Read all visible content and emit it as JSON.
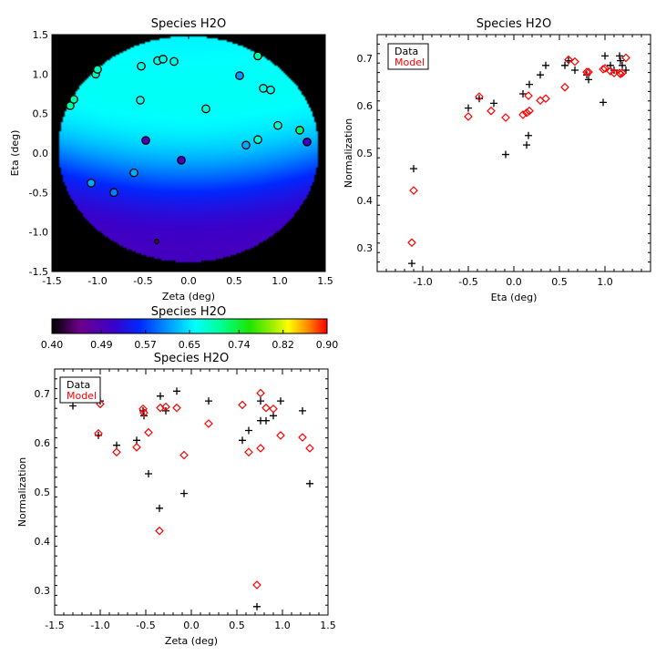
{
  "chart_data": [
    {
      "id": "map",
      "type": "scatter",
      "title": "Species H2O",
      "xlabel": "Zeta (deg)",
      "ylabel": "Eta (deg)",
      "xlim": [
        -1.5,
        1.5
      ],
      "ylim": [
        -1.5,
        1.5
      ],
      "xticks": [
        "-1.5",
        "-1.0",
        "-0.5",
        "0.0",
        "0.5",
        "1.0",
        "1.5"
      ],
      "yticks": [
        "-1.5",
        "-1.0",
        "-0.5",
        "0.0",
        "0.5",
        "1.0",
        "1.5"
      ],
      "background": "smooth color map inside a circular field of view, black outside",
      "points": [
        {
          "zeta": -1.3,
          "eta": 0.6,
          "value": 0.7
        },
        {
          "zeta": -1.26,
          "eta": 0.68,
          "value": 0.7
        },
        {
          "zeta": -1.02,
          "eta": 1.0,
          "value": 0.69
        },
        {
          "zeta": -1.0,
          "eta": 1.06,
          "value": 0.69
        },
        {
          "zeta": -0.52,
          "eta": 1.1,
          "value": 0.67
        },
        {
          "zeta": -0.34,
          "eta": 1.17,
          "value": 0.67
        },
        {
          "zeta": -0.28,
          "eta": 1.19,
          "value": 0.67
        },
        {
          "zeta": -0.16,
          "eta": 1.16,
          "value": 0.67
        },
        {
          "zeta": 0.56,
          "eta": 0.98,
          "value": 0.61
        },
        {
          "zeta": 0.76,
          "eta": 1.23,
          "value": 0.7
        },
        {
          "zeta": 0.82,
          "eta": 0.82,
          "value": 0.67
        },
        {
          "zeta": 0.9,
          "eta": 0.8,
          "value": 0.67
        },
        {
          "zeta": -0.53,
          "eta": 0.67,
          "value": 0.67
        },
        {
          "zeta": 0.19,
          "eta": 0.56,
          "value": 0.68
        },
        {
          "zeta": 0.98,
          "eta": 0.35,
          "value": 0.68
        },
        {
          "zeta": 1.22,
          "eta": 0.29,
          "value": 0.72
        },
        {
          "zeta": 1.3,
          "eta": 0.14,
          "value": 0.51
        },
        {
          "zeta": 0.76,
          "eta": 0.17,
          "value": 0.68
        },
        {
          "zeta": 0.63,
          "eta": 0.1,
          "value": 0.62
        },
        {
          "zeta": -0.47,
          "eta": 0.16,
          "value": 0.5
        },
        {
          "zeta": -0.08,
          "eta": -0.09,
          "value": 0.5
        },
        {
          "zeta": -0.6,
          "eta": -0.25,
          "value": 0.62
        },
        {
          "zeta": -1.07,
          "eta": -0.38,
          "value": 0.62
        },
        {
          "zeta": -0.82,
          "eta": -0.5,
          "value": 0.6
        },
        {
          "zeta": -0.35,
          "eta": -1.12,
          "value": 0.43
        }
      ]
    },
    {
      "id": "colorbar",
      "type": "heatmap",
      "title": "Species H2O",
      "ticks": [
        "0.40",
        "0.49",
        "0.57",
        "0.65",
        "0.74",
        "0.82",
        "0.90"
      ],
      "range": [
        0.4,
        0.9
      ],
      "colormap": "rainbow (black-purple-blue-cyan-green-yellow-red)"
    },
    {
      "id": "eta-plot",
      "type": "scatter",
      "title": "Species H2O",
      "xlabel": "Eta (deg)",
      "ylabel": "Normalization",
      "xlim": [
        -1.5,
        1.5
      ],
      "ylim": [
        0.25,
        0.75
      ],
      "xticks": [
        "-1.0",
        "-0.5",
        "0.0",
        "0.5",
        "1.0"
      ],
      "yticks": [
        "0.3",
        "0.4",
        "0.5",
        "0.6",
        "0.7"
      ],
      "legend": {
        "position": "top-left",
        "entries": [
          {
            "label": "Data",
            "color": "#000000"
          },
          {
            "label": "Model",
            "color": "#ff0000"
          }
        ]
      },
      "series": [
        {
          "name": "Data",
          "marker": "plus",
          "color": "#000000",
          "x": [
            -1.12,
            -1.1,
            -0.5,
            -0.38,
            -0.22,
            -0.09,
            0.1,
            0.14,
            0.16,
            0.17,
            0.29,
            0.35,
            0.56,
            0.6,
            0.67,
            0.8,
            0.82,
            0.98,
            1.0,
            1.06,
            1.1,
            1.16,
            1.17,
            1.19,
            1.23
          ],
          "y": [
            0.267,
            0.467,
            0.595,
            0.615,
            0.605,
            0.497,
            0.625,
            0.517,
            0.537,
            0.645,
            0.665,
            0.685,
            0.685,
            0.695,
            0.675,
            0.665,
            0.655,
            0.607,
            0.705,
            0.685,
            0.675,
            0.705,
            0.695,
            0.685,
            0.675
          ]
        },
        {
          "name": "Model",
          "marker": "diamond",
          "color": "#ff0000",
          "x": [
            -1.12,
            -1.1,
            -0.5,
            -0.38,
            -0.25,
            -0.09,
            0.1,
            0.14,
            0.16,
            0.17,
            0.29,
            0.35,
            0.56,
            0.6,
            0.67,
            0.8,
            0.82,
            0.98,
            1.0,
            1.06,
            1.1,
            1.16,
            1.17,
            1.19,
            1.23
          ],
          "y": [
            0.311,
            0.421,
            0.577,
            0.619,
            0.589,
            0.575,
            0.581,
            0.585,
            0.621,
            0.589,
            0.611,
            0.615,
            0.639,
            0.697,
            0.693,
            0.671,
            0.671,
            0.677,
            0.679,
            0.673,
            0.669,
            0.669,
            0.667,
            0.669,
            0.701
          ]
        }
      ]
    },
    {
      "id": "zeta-plot",
      "type": "scatter",
      "title": "Species H2O",
      "xlabel": "Zeta (deg)",
      "ylabel": "Normalization",
      "xlim": [
        -1.5,
        1.5
      ],
      "ylim": [
        0.25,
        0.75
      ],
      "xticks": [
        "-1.5",
        "-1.0",
        "-0.5",
        "0.0",
        "0.5",
        "1.0",
        "1.5"
      ],
      "yticks": [
        "0.3",
        "0.4",
        "0.5",
        "0.6",
        "0.7"
      ],
      "legend": {
        "position": "top-left",
        "entries": [
          {
            "label": "Data",
            "color": "#000000"
          },
          {
            "label": "Model",
            "color": "#ff0000"
          }
        ]
      },
      "series": [
        {
          "name": "Data",
          "marker": "plus",
          "color": "#000000",
          "x": [
            -1.3,
            -1.26,
            -1.02,
            -1.0,
            -0.82,
            -0.6,
            -0.53,
            -0.52,
            -0.47,
            -0.35,
            -0.34,
            -0.28,
            -0.16,
            -0.08,
            0.19,
            0.56,
            0.63,
            0.72,
            0.76,
            0.76,
            0.82,
            0.9,
            0.98,
            1.22,
            1.3
          ],
          "y": [
            0.675,
            0.695,
            0.615,
            0.685,
            0.595,
            0.605,
            0.665,
            0.655,
            0.537,
            0.467,
            0.695,
            0.665,
            0.705,
            0.497,
            0.685,
            0.605,
            0.625,
            0.267,
            0.645,
            0.685,
            0.645,
            0.655,
            0.685,
            0.665,
            0.517
          ]
        },
        {
          "name": "Model",
          "marker": "diamond",
          "color": "#ff0000",
          "x": [
            -1.3,
            -1.26,
            -1.02,
            -1.0,
            -0.82,
            -0.6,
            -0.53,
            -0.52,
            -0.47,
            -0.35,
            -0.34,
            -0.28,
            -0.16,
            -0.08,
            0.19,
            0.56,
            0.63,
            0.72,
            0.76,
            0.76,
            0.82,
            0.9,
            0.98,
            1.22,
            1.3
          ],
          "y": [
            0.697,
            0.697,
            0.619,
            0.679,
            0.581,
            0.591,
            0.669,
            0.661,
            0.621,
            0.421,
            0.671,
            0.673,
            0.671,
            0.575,
            0.639,
            0.677,
            0.581,
            0.311,
            0.701,
            0.589,
            0.671,
            0.669,
            0.615,
            0.611,
            0.589
          ]
        }
      ]
    }
  ]
}
